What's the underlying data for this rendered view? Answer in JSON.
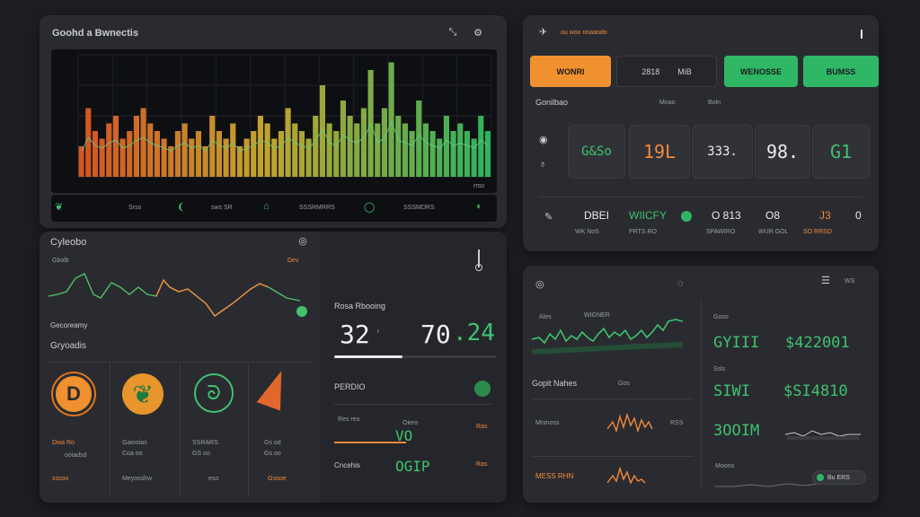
{
  "main_panel": {
    "title": "Goohd a Bwnectis",
    "chart_footer": "rrso",
    "y_ticks": [
      "",
      "",
      "",
      "",
      ""
    ],
    "bottom_items": [
      "Srso",
      "sws SR",
      "SSSRMRRS",
      "SSSMDRS"
    ]
  },
  "left_panel": {
    "title": "Cyleobo",
    "sparkline_label": "Gbolb",
    "sparkline_tag": "Dev",
    "section_label": "Gecoreamy",
    "subsection_label": "Gryoadis",
    "tiles": [
      {
        "name": "Dwa Ro",
        "value": "ooiadsd",
        "sub": "sssoo"
      },
      {
        "name": "Gaiooias",
        "value": "Coa oo",
        "sub": "Meyosslrw"
      },
      {
        "name": "SSRARS",
        "value": "GS oo",
        "sub": "eso"
      },
      {
        "name": "Gs od",
        "value": "Gs oo",
        "sub": "Gsooe"
      }
    ]
  },
  "center_panel": {
    "title": "Rosa Rbooing",
    "big_left": "32",
    "big_left_unit": "r",
    "big_right": "70",
    "big_right_suffix": ".24",
    "section": "PERDIO",
    "row1_label": "Res reo",
    "row1_value": "Oiero",
    "row1_big": "VO",
    "row1_side": "Ras",
    "row2_label": "Cncehis",
    "row2_big": "OGIP",
    "row2_side": "Ras"
  },
  "top_right": {
    "header": "ou woo nnaaodo",
    "tab_active": "WONRI",
    "tab_plain": "2818",
    "tab_plain2": "MiB",
    "tab_green1": "WENOSSE",
    "tab_green2": "BUMSS",
    "section": "Gonilbao",
    "col_a": "Moao",
    "col_b": "Boln",
    "cards": [
      "G&So",
      "19L",
      "333.",
      "98.",
      "G1"
    ],
    "stats": [
      {
        "label": "DBEI",
        "sub": "WK NoS"
      },
      {
        "label": "WIICFY",
        "sub": "PRTS RO"
      },
      {
        "label": "O 813",
        "sub": "SPAWIRO"
      },
      {
        "label": "O8",
        "sub": "WUR GOL"
      },
      {
        "label": "J3",
        "sub": "SO RRSD"
      }
    ],
    "stat_tail": "0"
  },
  "bottom_right": {
    "header_right": "WS",
    "spark_a": "Ales",
    "spark_b": "WIGNER",
    "row_label": "Gopit Nahes",
    "row_side": "Gos",
    "row2_label": "Mnmoss",
    "row2_side": "RSS",
    "row3_label": "MESS RHN",
    "side_title": "Goso",
    "values": [
      {
        "big": "GYIII",
        "value": "$422001",
        "label": "Ssls"
      },
      {
        "big": "SIWI",
        "value": "$SI4810",
        "label": ""
      },
      {
        "big": "3OOIM",
        "value": "",
        "label": ""
      }
    ],
    "footer_label": "Moono",
    "footer_badge": "Bu ERS"
  },
  "colors": {
    "accent_orange": "#f0902f",
    "accent_green": "#2fb765",
    "panel_bg": "#2a2b30",
    "page_bg": "#1d1e22"
  },
  "chart_data": {
    "type": "bar",
    "title": "",
    "xlabel": "",
    "ylabel": "",
    "values": [
      4,
      9,
      6,
      5,
      7,
      8,
      5,
      6,
      8,
      9,
      7,
      6,
      5,
      4,
      6,
      7,
      5,
      6,
      4,
      8,
      6,
      5,
      7,
      4,
      5,
      6,
      8,
      7,
      5,
      6,
      9,
      7,
      6,
      5,
      8,
      12,
      7,
      6,
      10,
      8,
      7,
      9,
      14,
      7,
      9,
      15,
      8,
      7,
      6,
      10,
      7,
      6,
      5,
      8,
      6,
      7,
      6,
      5,
      8,
      6
    ],
    "ylim": [
      0,
      16
    ],
    "grid": true
  }
}
